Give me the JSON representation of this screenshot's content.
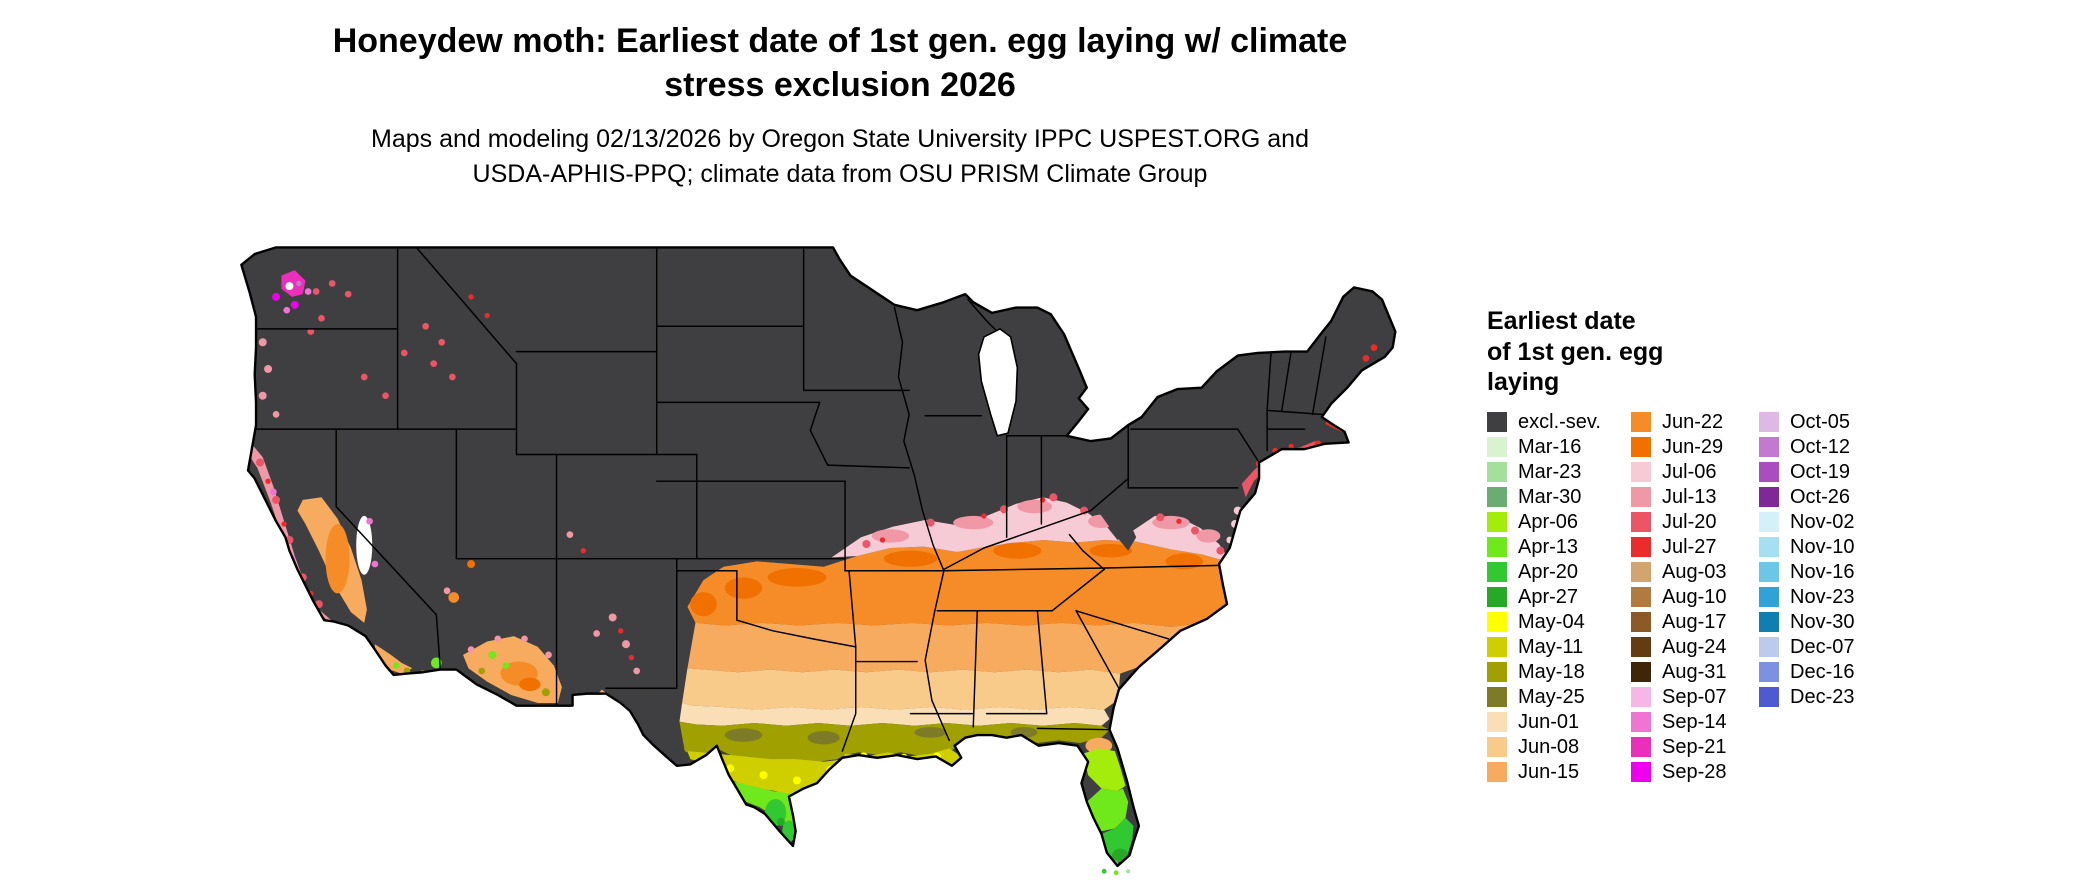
{
  "header": {
    "title": "Honeydew moth: Earliest date of 1st gen. egg laying w/ climate\nstress exclusion 2026",
    "subtitle": "Maps and modeling 02/13/2026 by Oregon State University IPPC USPEST.ORG and\nUSDA-APHIS-PPQ; climate data from OSU PRISM Climate Group"
  },
  "legend": {
    "title": "Earliest date\nof 1st gen. egg\nlaying",
    "columns": [
      [
        {
          "label": "excl.-sev.",
          "key": "excl"
        },
        {
          "label": "Mar-16",
          "key": "mar16"
        },
        {
          "label": "Mar-23",
          "key": "mar23"
        },
        {
          "label": "Mar-30",
          "key": "mar30"
        },
        {
          "label": "Apr-06",
          "key": "apr06"
        },
        {
          "label": "Apr-13",
          "key": "apr13"
        },
        {
          "label": "Apr-20",
          "key": "apr20"
        },
        {
          "label": "Apr-27",
          "key": "apr27"
        },
        {
          "label": "May-04",
          "key": "may04"
        },
        {
          "label": "May-11",
          "key": "may11"
        },
        {
          "label": "May-18",
          "key": "may18"
        },
        {
          "label": "May-25",
          "key": "may25"
        },
        {
          "label": "Jun-01",
          "key": "jun01"
        },
        {
          "label": "Jun-08",
          "key": "jun08"
        },
        {
          "label": "Jun-15",
          "key": "jun15"
        }
      ],
      [
        {
          "label": "Jun-22",
          "key": "jun22"
        },
        {
          "label": "Jun-29",
          "key": "jun29"
        },
        {
          "label": "Jul-06",
          "key": "jul06"
        },
        {
          "label": "Jul-13",
          "key": "jul13"
        },
        {
          "label": "Jul-20",
          "key": "jul20"
        },
        {
          "label": "Jul-27",
          "key": "jul27"
        },
        {
          "label": "Aug-03",
          "key": "aug03"
        },
        {
          "label": "Aug-10",
          "key": "aug10"
        },
        {
          "label": "Aug-17",
          "key": "aug17"
        },
        {
          "label": "Aug-24",
          "key": "aug24"
        },
        {
          "label": "Aug-31",
          "key": "aug31"
        },
        {
          "label": "Sep-07",
          "key": "sep07"
        },
        {
          "label": "Sep-14",
          "key": "sep14"
        },
        {
          "label": "Sep-21",
          "key": "sep21"
        },
        {
          "label": "Sep-28",
          "key": "sep28"
        }
      ],
      [
        {
          "label": "Oct-05",
          "key": "oct05"
        },
        {
          "label": "Oct-12",
          "key": "oct12"
        },
        {
          "label": "Oct-19",
          "key": "oct19"
        },
        {
          "label": "Oct-26",
          "key": "oct26"
        },
        {
          "label": "Nov-02",
          "key": "nov02"
        },
        {
          "label": "Nov-10",
          "key": "nov10"
        },
        {
          "label": "Nov-16",
          "key": "nov16"
        },
        {
          "label": "Nov-23",
          "key": "nov23"
        },
        {
          "label": "Nov-30",
          "key": "nov30"
        },
        {
          "label": "Dec-07",
          "key": "dec07"
        },
        {
          "label": "Dec-16",
          "key": "dec16"
        },
        {
          "label": "Dec-23",
          "key": "dec23"
        }
      ]
    ]
  },
  "palette": {
    "excl": "#3f3f42",
    "mar16": "#d9f2d0",
    "mar23": "#a4e09b",
    "mar30": "#6aac71",
    "apr06": "#a4ec0c",
    "apr13": "#6fe81c",
    "apr20": "#31c831",
    "apr27": "#27a827",
    "may04": "#ffff00",
    "may11": "#cfcf00",
    "may18": "#a0a000",
    "may25": "#7d7b28",
    "jun01": "#fadfb6",
    "jun08": "#f9cb8b",
    "jun15": "#f7ab5e",
    "jun22": "#f68c28",
    "jun29": "#f07000",
    "jul06": "#f6cbd6",
    "jul13": "#f098a6",
    "jul20": "#ec5566",
    "jul27": "#ea2c2c",
    "aug03": "#d2a470",
    "aug10": "#b17a3e",
    "aug17": "#8c5a26",
    "aug24": "#643c14",
    "aug31": "#3f2608",
    "sep07": "#f6b6e6",
    "sep14": "#f075d2",
    "sep21": "#ea2fbb",
    "sep28": "#ee00ee",
    "oct05": "#dfb9e6",
    "oct12": "#c379cf",
    "oct19": "#a94ebc",
    "oct26": "#7f2996",
    "nov02": "#d4f0f8",
    "nov10": "#a5e0f2",
    "nov16": "#6cc6e6",
    "nov23": "#2fa3d7",
    "nov30": "#0f7fb2",
    "dec07": "#bccaee",
    "dec16": "#7e90e0",
    "dec23": "#4f5ad2"
  }
}
